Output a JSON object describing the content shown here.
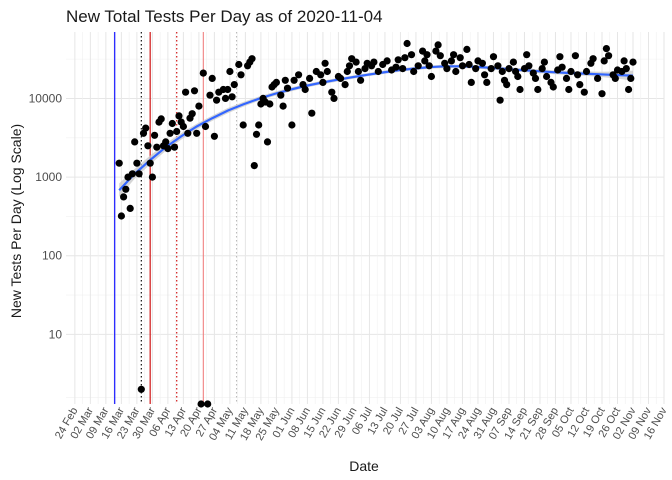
{
  "chart_data": {
    "type": "scatter",
    "title": "New Total Tests Per Day as of 2020-11-04",
    "xlabel": "Date",
    "ylabel": "New Tests Per Day (Log Scale)",
    "y_scale": "log10",
    "ylim": [
      1.3,
      70000
    ],
    "xlim": [
      "2020-02-20",
      "2020-11-16"
    ],
    "grid": true,
    "y_tick_labels": [
      "10",
      "100",
      "1000",
      "10000"
    ],
    "y_tick_values": [
      10,
      100,
      1000,
      10000
    ],
    "x_tick_labels": [
      "24 Feb",
      "02 Mar",
      "09 Mar",
      "16 Mar",
      "23 Mar",
      "30 Mar",
      "06 Apr",
      "13 Apr",
      "20 Apr",
      "27 Apr",
      "04 May",
      "11 May",
      "18 May",
      "25 May",
      "01 Jun",
      "08 Jun",
      "15 Jun",
      "22 Jun",
      "29 Jun",
      "06 Jul",
      "13 Jul",
      "20 Jul",
      "27 Jul",
      "03 Aug",
      "10 Aug",
      "17 Aug",
      "24 Aug",
      "31 Aug",
      "07 Sep",
      "14 Sep",
      "21 Sep",
      "28 Sep",
      "05 Oct",
      "12 Oct",
      "19 Oct",
      "26 Oct",
      "02 Nov",
      "09 Nov",
      "16 Nov"
    ],
    "x_tick_dates": [
      "2020-02-24",
      "2020-03-02",
      "2020-03-09",
      "2020-03-16",
      "2020-03-23",
      "2020-03-30",
      "2020-04-06",
      "2020-04-13",
      "2020-04-20",
      "2020-04-27",
      "2020-05-04",
      "2020-05-11",
      "2020-05-18",
      "2020-05-25",
      "2020-06-01",
      "2020-06-08",
      "2020-06-15",
      "2020-06-22",
      "2020-06-29",
      "2020-07-06",
      "2020-07-13",
      "2020-07-20",
      "2020-07-27",
      "2020-08-03",
      "2020-08-10",
      "2020-08-17",
      "2020-08-24",
      "2020-08-31",
      "2020-09-07",
      "2020-09-14",
      "2020-09-21",
      "2020-09-28",
      "2020-10-05",
      "2020-10-12",
      "2020-10-19",
      "2020-10-26",
      "2020-11-02",
      "2020-11-09",
      "2020-11-16"
    ],
    "reference_lines": [
      {
        "date": "2020-03-13",
        "color": "#0000ff",
        "style": "solid"
      },
      {
        "date": "2020-03-25",
        "color": "#000000",
        "style": "dotted"
      },
      {
        "date": "2020-03-29",
        "color": "#cc0000",
        "style": "solid"
      },
      {
        "date": "2020-04-10",
        "color": "#cc0000",
        "style": "dotted"
      },
      {
        "date": "2020-04-22",
        "color": "#f08080",
        "style": "solid"
      },
      {
        "date": "2020-05-07",
        "color": "#bbbbbb",
        "style": "dotted"
      }
    ],
    "smooth_color": "#3366ff",
    "band_color": "#c8c8c8",
    "point_color": "#000000",
    "points": [
      {
        "x": "2020-03-15",
        "y": 1500
      },
      {
        "x": "2020-03-16",
        "y": 320
      },
      {
        "x": "2020-03-17",
        "y": 560
      },
      {
        "x": "2020-03-18",
        "y": 700
      },
      {
        "x": "2020-03-19",
        "y": 1000
      },
      {
        "x": "2020-03-20",
        "y": 400
      },
      {
        "x": "2020-03-21",
        "y": 1100
      },
      {
        "x": "2020-03-22",
        "y": 2800
      },
      {
        "x": "2020-03-23",
        "y": 1500
      },
      {
        "x": "2020-03-24",
        "y": 1100
      },
      {
        "x": "2020-03-25",
        "y": 2
      },
      {
        "x": "2020-03-26",
        "y": 3600
      },
      {
        "x": "2020-03-27",
        "y": 4200
      },
      {
        "x": "2020-03-28",
        "y": 2500
      },
      {
        "x": "2020-03-29",
        "y": 1500
      },
      {
        "x": "2020-03-30",
        "y": 1000
      },
      {
        "x": "2020-03-31",
        "y": 3400
      },
      {
        "x": "2020-04-01",
        "y": 2400
      },
      {
        "x": "2020-04-02",
        "y": 5000
      },
      {
        "x": "2020-04-03",
        "y": 5500
      },
      {
        "x": "2020-04-04",
        "y": 2500
      },
      {
        "x": "2020-04-05",
        "y": 2800
      },
      {
        "x": "2020-04-06",
        "y": 2300
      },
      {
        "x": "2020-04-07",
        "y": 3600
      },
      {
        "x": "2020-04-08",
        "y": 4800
      },
      {
        "x": "2020-04-09",
        "y": 2400
      },
      {
        "x": "2020-04-10",
        "y": 3800
      },
      {
        "x": "2020-04-11",
        "y": 6000
      },
      {
        "x": "2020-04-12",
        "y": 5000
      },
      {
        "x": "2020-04-13",
        "y": 4400
      },
      {
        "x": "2020-04-14",
        "y": 12000
      },
      {
        "x": "2020-04-15",
        "y": 3600
      },
      {
        "x": "2020-04-16",
        "y": 5600
      },
      {
        "x": "2020-04-17",
        "y": 6400
      },
      {
        "x": "2020-04-18",
        "y": 12500
      },
      {
        "x": "2020-04-19",
        "y": 3600
      },
      {
        "x": "2020-04-20",
        "y": 8000
      },
      {
        "x": "2020-04-21",
        "y": 1.3
      },
      {
        "x": "2020-04-22",
        "y": 21000
      },
      {
        "x": "2020-04-23",
        "y": 4400
      },
      {
        "x": "2020-04-24",
        "y": 1.3
      },
      {
        "x": "2020-04-25",
        "y": 11000
      },
      {
        "x": "2020-04-26",
        "y": 18000
      },
      {
        "x": "2020-04-27",
        "y": 3300
      },
      {
        "x": "2020-04-28",
        "y": 9500
      },
      {
        "x": "2020-04-29",
        "y": 12000
      },
      {
        "x": "2020-05-01",
        "y": 13000
      },
      {
        "x": "2020-05-02",
        "y": 10000
      },
      {
        "x": "2020-05-03",
        "y": 13000
      },
      {
        "x": "2020-05-04",
        "y": 22000
      },
      {
        "x": "2020-05-05",
        "y": 10500
      },
      {
        "x": "2020-05-06",
        "y": 15000
      },
      {
        "x": "2020-05-08",
        "y": 27000
      },
      {
        "x": "2020-05-09",
        "y": 20000
      },
      {
        "x": "2020-05-10",
        "y": 4600
      },
      {
        "x": "2020-05-12",
        "y": 26000
      },
      {
        "x": "2020-05-13",
        "y": 29000
      },
      {
        "x": "2020-05-14",
        "y": 32000
      },
      {
        "x": "2020-05-15",
        "y": 1400
      },
      {
        "x": "2020-05-16",
        "y": 3500
      },
      {
        "x": "2020-05-17",
        "y": 4600
      },
      {
        "x": "2020-05-18",
        "y": 8500
      },
      {
        "x": "2020-05-19",
        "y": 10000
      },
      {
        "x": "2020-05-20",
        "y": 9000
      },
      {
        "x": "2020-05-21",
        "y": 2800
      },
      {
        "x": "2020-05-22",
        "y": 8500
      },
      {
        "x": "2020-05-23",
        "y": 14000
      },
      {
        "x": "2020-05-24",
        "y": 15000
      },
      {
        "x": "2020-05-25",
        "y": 16000
      },
      {
        "x": "2020-05-27",
        "y": 11000
      },
      {
        "x": "2020-05-28",
        "y": 8000
      },
      {
        "x": "2020-05-29",
        "y": 17000
      },
      {
        "x": "2020-05-30",
        "y": 13500
      },
      {
        "x": "2020-06-01",
        "y": 4600
      },
      {
        "x": "2020-06-02",
        "y": 17000
      },
      {
        "x": "2020-06-04",
        "y": 20000
      },
      {
        "x": "2020-06-06",
        "y": 15000
      },
      {
        "x": "2020-06-07",
        "y": 13000
      },
      {
        "x": "2020-06-09",
        "y": 18000
      },
      {
        "x": "2020-06-10",
        "y": 6500
      },
      {
        "x": "2020-06-12",
        "y": 22000
      },
      {
        "x": "2020-06-14",
        "y": 20000
      },
      {
        "x": "2020-06-15",
        "y": 16000
      },
      {
        "x": "2020-06-16",
        "y": 28000
      },
      {
        "x": "2020-06-17",
        "y": 22000
      },
      {
        "x": "2020-06-19",
        "y": 12000
      },
      {
        "x": "2020-06-20",
        "y": 10000
      },
      {
        "x": "2020-06-22",
        "y": 19000
      },
      {
        "x": "2020-06-23",
        "y": 18000
      },
      {
        "x": "2020-06-25",
        "y": 15000
      },
      {
        "x": "2020-06-26",
        "y": 22000
      },
      {
        "x": "2020-06-27",
        "y": 26000
      },
      {
        "x": "2020-06-28",
        "y": 32000
      },
      {
        "x": "2020-06-30",
        "y": 29000
      },
      {
        "x": "2020-07-01",
        "y": 22000
      },
      {
        "x": "2020-07-02",
        "y": 17000
      },
      {
        "x": "2020-07-04",
        "y": 24000
      },
      {
        "x": "2020-07-05",
        "y": 28000
      },
      {
        "x": "2020-07-07",
        "y": 26000
      },
      {
        "x": "2020-07-08",
        "y": 29000
      },
      {
        "x": "2020-07-10",
        "y": 22000
      },
      {
        "x": "2020-07-12",
        "y": 27000
      },
      {
        "x": "2020-07-14",
        "y": 30000
      },
      {
        "x": "2020-07-16",
        "y": 23000
      },
      {
        "x": "2020-07-18",
        "y": 25000
      },
      {
        "x": "2020-07-19",
        "y": 31000
      },
      {
        "x": "2020-07-21",
        "y": 24000
      },
      {
        "x": "2020-07-22",
        "y": 33000
      },
      {
        "x": "2020-07-23",
        "y": 50000
      },
      {
        "x": "2020-07-25",
        "y": 36000
      },
      {
        "x": "2020-07-26",
        "y": 22000
      },
      {
        "x": "2020-07-28",
        "y": 26000
      },
      {
        "x": "2020-07-30",
        "y": 40000
      },
      {
        "x": "2020-07-31",
        "y": 30000
      },
      {
        "x": "2020-08-01",
        "y": 36000
      },
      {
        "x": "2020-08-02",
        "y": 26000
      },
      {
        "x": "2020-08-03",
        "y": 19000
      },
      {
        "x": "2020-08-05",
        "y": 40000
      },
      {
        "x": "2020-08-06",
        "y": 48000
      },
      {
        "x": "2020-08-07",
        "y": 35000
      },
      {
        "x": "2020-08-09",
        "y": 28000
      },
      {
        "x": "2020-08-10",
        "y": 24000
      },
      {
        "x": "2020-08-12",
        "y": 30000
      },
      {
        "x": "2020-08-13",
        "y": 36000
      },
      {
        "x": "2020-08-14",
        "y": 22000
      },
      {
        "x": "2020-08-16",
        "y": 33000
      },
      {
        "x": "2020-08-17",
        "y": 26000
      },
      {
        "x": "2020-08-19",
        "y": 42000
      },
      {
        "x": "2020-08-20",
        "y": 27000
      },
      {
        "x": "2020-08-21",
        "y": 16000
      },
      {
        "x": "2020-08-23",
        "y": 24000
      },
      {
        "x": "2020-08-24",
        "y": 30000
      },
      {
        "x": "2020-08-26",
        "y": 28000
      },
      {
        "x": "2020-08-27",
        "y": 20000
      },
      {
        "x": "2020-08-28",
        "y": 16000
      },
      {
        "x": "2020-08-30",
        "y": 24000
      },
      {
        "x": "2020-08-31",
        "y": 34000
      },
      {
        "x": "2020-09-02",
        "y": 26000
      },
      {
        "x": "2020-09-03",
        "y": 9500
      },
      {
        "x": "2020-09-04",
        "y": 22000
      },
      {
        "x": "2020-09-05",
        "y": 17000
      },
      {
        "x": "2020-09-06",
        "y": 15000
      },
      {
        "x": "2020-09-07",
        "y": 24000
      },
      {
        "x": "2020-09-09",
        "y": 29000
      },
      {
        "x": "2020-09-10",
        "y": 22000
      },
      {
        "x": "2020-09-11",
        "y": 19000
      },
      {
        "x": "2020-09-12",
        "y": 13000
      },
      {
        "x": "2020-09-14",
        "y": 24000
      },
      {
        "x": "2020-09-15",
        "y": 36000
      },
      {
        "x": "2020-09-16",
        "y": 26000
      },
      {
        "x": "2020-09-18",
        "y": 21000
      },
      {
        "x": "2020-09-19",
        "y": 18000
      },
      {
        "x": "2020-09-20",
        "y": 13000
      },
      {
        "x": "2020-09-22",
        "y": 24000
      },
      {
        "x": "2020-09-23",
        "y": 29000
      },
      {
        "x": "2020-09-24",
        "y": 19000
      },
      {
        "x": "2020-09-26",
        "y": 16000
      },
      {
        "x": "2020-09-27",
        "y": 14000
      },
      {
        "x": "2020-09-29",
        "y": 23000
      },
      {
        "x": "2020-09-30",
        "y": 34000
      },
      {
        "x": "2020-10-01",
        "y": 25000
      },
      {
        "x": "2020-10-03",
        "y": 18000
      },
      {
        "x": "2020-10-04",
        "y": 13000
      },
      {
        "x": "2020-10-05",
        "y": 22000
      },
      {
        "x": "2020-10-07",
        "y": 35000
      },
      {
        "x": "2020-10-08",
        "y": 20000
      },
      {
        "x": "2020-10-09",
        "y": 15000
      },
      {
        "x": "2020-10-11",
        "y": 12000
      },
      {
        "x": "2020-10-12",
        "y": 22000
      },
      {
        "x": "2020-10-14",
        "y": 28000
      },
      {
        "x": "2020-10-15",
        "y": 32000
      },
      {
        "x": "2020-10-17",
        "y": 18000
      },
      {
        "x": "2020-10-19",
        "y": 11500
      },
      {
        "x": "2020-10-20",
        "y": 30000
      },
      {
        "x": "2020-10-21",
        "y": 43000
      },
      {
        "x": "2020-10-22",
        "y": 35000
      },
      {
        "x": "2020-10-24",
        "y": 20000
      },
      {
        "x": "2020-10-25",
        "y": 18000
      },
      {
        "x": "2020-10-26",
        "y": 23000
      },
      {
        "x": "2020-10-28",
        "y": 22000
      },
      {
        "x": "2020-10-29",
        "y": 30000
      },
      {
        "x": "2020-10-30",
        "y": 24000
      },
      {
        "x": "2020-10-31",
        "y": 13000
      },
      {
        "x": "2020-11-01",
        "y": 18000
      },
      {
        "x": "2020-11-02",
        "y": 29000
      }
    ],
    "smooth_line": [
      {
        "x": "2020-03-15",
        "y": 680,
        "lo": 560,
        "hi": 830
      },
      {
        "x": "2020-03-22",
        "y": 1100,
        "lo": 950,
        "hi": 1270
      },
      {
        "x": "2020-03-29",
        "y": 1650,
        "lo": 1450,
        "hi": 1880
      },
      {
        "x": "2020-04-05",
        "y": 2400,
        "lo": 2150,
        "hi": 2680
      },
      {
        "x": "2020-04-12",
        "y": 3300,
        "lo": 3000,
        "hi": 3630
      },
      {
        "x": "2020-04-19",
        "y": 4400,
        "lo": 4050,
        "hi": 4780
      },
      {
        "x": "2020-04-26",
        "y": 5600,
        "lo": 5180,
        "hi": 6050
      },
      {
        "x": "2020-05-03",
        "y": 7000,
        "lo": 6500,
        "hi": 7550
      },
      {
        "x": "2020-05-10",
        "y": 8400,
        "lo": 7850,
        "hi": 9000
      },
      {
        "x": "2020-05-17",
        "y": 9900,
        "lo": 9300,
        "hi": 10550
      },
      {
        "x": "2020-05-24",
        "y": 11400,
        "lo": 10750,
        "hi": 12100
      },
      {
        "x": "2020-05-31",
        "y": 12900,
        "lo": 12200,
        "hi": 13650
      },
      {
        "x": "2020-06-07",
        "y": 14400,
        "lo": 13650,
        "hi": 15200
      },
      {
        "x": "2020-06-14",
        "y": 15800,
        "lo": 15000,
        "hi": 16650
      },
      {
        "x": "2020-06-21",
        "y": 17200,
        "lo": 16350,
        "hi": 18100
      },
      {
        "x": "2020-06-28",
        "y": 18600,
        "lo": 17700,
        "hi": 19550
      },
      {
        "x": "2020-07-05",
        "y": 20000,
        "lo": 19050,
        "hi": 21000
      },
      {
        "x": "2020-07-12",
        "y": 21400,
        "lo": 20400,
        "hi": 22450
      },
      {
        "x": "2020-07-19",
        "y": 22800,
        "lo": 21700,
        "hi": 23950
      },
      {
        "x": "2020-07-26",
        "y": 24000,
        "lo": 22850,
        "hi": 25200
      },
      {
        "x": "2020-08-02",
        "y": 25000,
        "lo": 23800,
        "hi": 26250
      },
      {
        "x": "2020-08-09",
        "y": 25600,
        "lo": 24400,
        "hi": 26850
      },
      {
        "x": "2020-08-16",
        "y": 25600,
        "lo": 24400,
        "hi": 26850
      },
      {
        "x": "2020-08-23",
        "y": 25200,
        "lo": 24000,
        "hi": 26450
      },
      {
        "x": "2020-08-30",
        "y": 24500,
        "lo": 23300,
        "hi": 25750
      },
      {
        "x": "2020-09-06",
        "y": 23700,
        "lo": 22500,
        "hi": 24950
      },
      {
        "x": "2020-09-13",
        "y": 22900,
        "lo": 21700,
        "hi": 24150
      },
      {
        "x": "2020-09-20",
        "y": 22200,
        "lo": 21000,
        "hi": 23450
      },
      {
        "x": "2020-09-27",
        "y": 21600,
        "lo": 20400,
        "hi": 22850
      },
      {
        "x": "2020-10-04",
        "y": 21100,
        "lo": 19900,
        "hi": 22400
      },
      {
        "x": "2020-10-11",
        "y": 20700,
        "lo": 19400,
        "hi": 22100
      },
      {
        "x": "2020-10-18",
        "y": 20300,
        "lo": 18800,
        "hi": 21900
      },
      {
        "x": "2020-10-25",
        "y": 19900,
        "lo": 18000,
        "hi": 22000
      },
      {
        "x": "2020-11-02",
        "y": 19500,
        "lo": 16800,
        "hi": 22600
      }
    ]
  }
}
